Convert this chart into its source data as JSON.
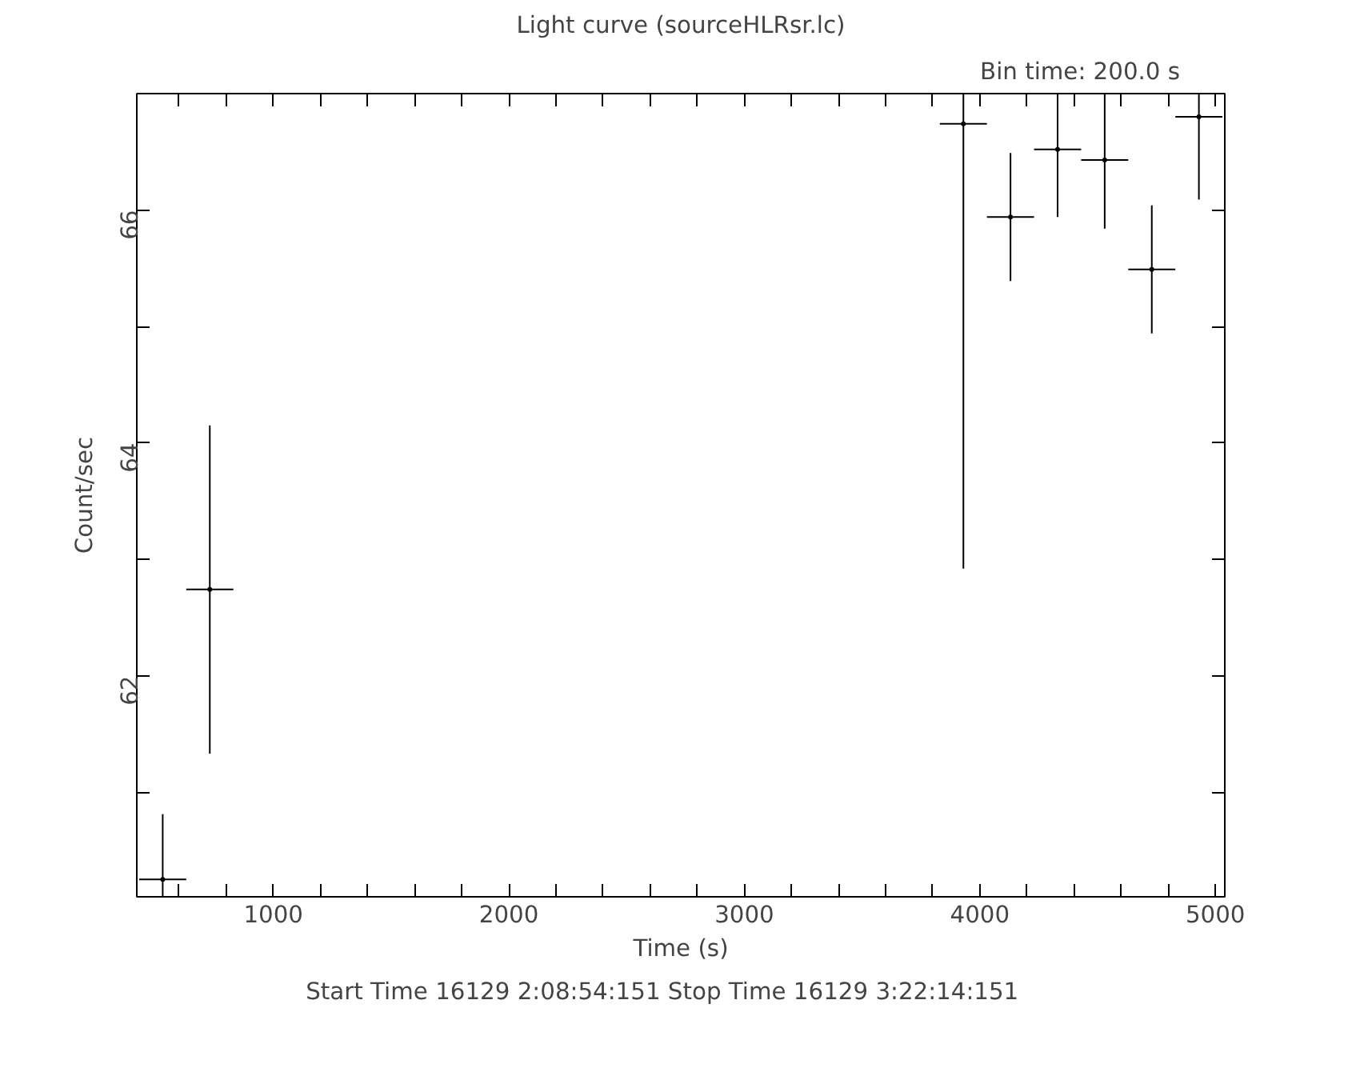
{
  "chart_data": {
    "type": "scatter",
    "title": "Light curve (sourceHLRsr.lc)",
    "xlabel": "Time (s)",
    "ylabel": "Count/sec",
    "annotations": [
      "Bin time:    200.0    s",
      "Start Time 16129  2:08:54:151    Stop Time 16129  3:22:14:151"
    ],
    "x": [
      530,
      730,
      3930,
      4130,
      4330,
      4530,
      4730,
      4930
    ],
    "values": [
      60.25,
      62.74,
      66.74,
      65.94,
      66.52,
      66.43,
      65.49,
      66.8
    ],
    "errors": [
      [
        60.1,
        60.81
      ],
      1.41,
      [
        62.92,
        67
      ],
      0.55,
      [
        65.94,
        67
      ],
      0.59,
      0.55,
      [
        66.09,
        67
      ]
    ],
    "xerrors": [
      100,
      100,
      100,
      100,
      100,
      100,
      100,
      100
    ],
    "color": "#000000",
    "grid": false,
    "xlim": [
      420,
      5040
    ],
    "ylim": [
      60.1,
      67
    ],
    "xticks": [
      {
        "value": 600,
        "label": null
      },
      {
        "value": 800,
        "label": null
      },
      1000,
      {
        "value": 1200,
        "label": null
      },
      {
        "value": 1400,
        "label": null
      },
      {
        "value": 1600,
        "label": null
      },
      {
        "value": 1800,
        "label": null
      },
      2000,
      {
        "value": 2200,
        "label": null
      },
      {
        "value": 2400,
        "label": null
      },
      {
        "value": 2600,
        "label": null
      },
      {
        "value": 2800,
        "label": null
      },
      3000,
      {
        "value": 3200,
        "label": null
      },
      {
        "value": 3400,
        "label": null
      },
      {
        "value": 3600,
        "label": null
      },
      {
        "value": 3800,
        "label": null
      },
      4000,
      {
        "value": 4200,
        "label": null
      },
      {
        "value": 4400,
        "label": null
      },
      {
        "value": 4600,
        "label": null
      },
      {
        "value": 4800,
        "label": null
      },
      5000
    ],
    "yticks": [
      {
        "value": 61,
        "label": null
      },
      62,
      {
        "value": 63,
        "label": null
      },
      64,
      {
        "value": 65,
        "label": null
      },
      66
    ]
  }
}
